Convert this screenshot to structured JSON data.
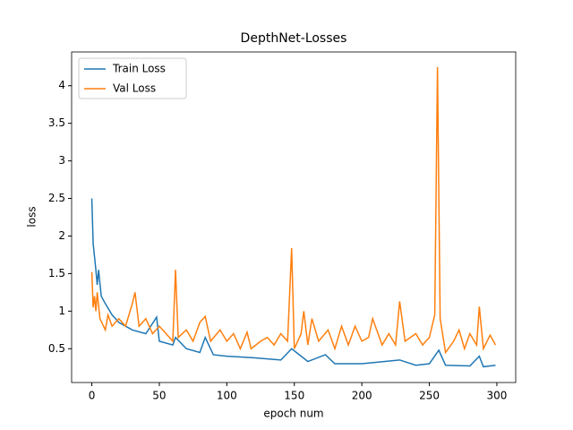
{
  "chart_data": {
    "type": "line",
    "title": "DepthNet-Losses",
    "x_label": "epoch num",
    "y_label": "loss",
    "xlim": [
      -14.95,
      313.95
    ],
    "xticks": [
      0,
      50,
      100,
      150,
      200,
      250,
      300
    ],
    "ylim": [
      0.05,
      4.45
    ],
    "yticks": [
      0.5,
      1.0,
      1.5,
      2.0,
      2.5,
      3.0,
      3.5,
      4.0
    ],
    "legend": "upper left",
    "series": [
      {
        "name": "Train Loss",
        "color": "#1f77b4",
        "x": [
          0,
          1,
          3,
          4,
          5,
          7,
          10,
          15,
          20,
          30,
          40,
          48,
          50,
          60,
          62,
          70,
          80,
          84,
          90,
          100,
          120,
          140,
          148,
          160,
          173,
          180,
          200,
          228,
          240,
          250,
          257,
          262,
          280,
          287,
          290,
          299
        ],
        "values": [
          2.5,
          1.9,
          1.55,
          1.35,
          1.55,
          1.2,
          1.1,
          0.95,
          0.85,
          0.75,
          0.7,
          0.92,
          0.6,
          0.55,
          0.65,
          0.5,
          0.45,
          0.65,
          0.42,
          0.4,
          0.38,
          0.35,
          0.5,
          0.33,
          0.42,
          0.3,
          0.3,
          0.35,
          0.28,
          0.3,
          0.48,
          0.28,
          0.27,
          0.4,
          0.26,
          0.28
        ]
      },
      {
        "name": "Val Loss",
        "color": "#ff7f0e",
        "x": [
          0,
          1,
          2,
          3,
          4,
          6,
          10,
          12,
          15,
          20,
          25,
          30,
          32,
          35,
          40,
          45,
          50,
          55,
          60,
          62,
          64,
          70,
          75,
          80,
          84,
          88,
          95,
          100,
          105,
          110,
          115,
          118,
          125,
          130,
          135,
          140,
          145,
          148,
          150,
          155,
          157,
          160,
          163,
          168,
          175,
          180,
          185,
          190,
          195,
          200,
          205,
          208,
          215,
          220,
          225,
          228,
          232,
          240,
          245,
          250,
          254,
          256,
          258,
          262,
          268,
          272,
          276,
          280,
          285,
          287,
          290,
          295,
          299
        ],
        "values": [
          1.52,
          1.05,
          1.2,
          1.0,
          1.25,
          0.9,
          0.75,
          0.95,
          0.8,
          0.9,
          0.8,
          1.1,
          1.25,
          0.8,
          0.9,
          0.7,
          0.8,
          0.7,
          0.6,
          1.55,
          0.65,
          0.75,
          0.6,
          0.85,
          0.93,
          0.6,
          0.75,
          0.6,
          0.7,
          0.5,
          0.72,
          0.5,
          0.6,
          0.65,
          0.55,
          0.7,
          0.6,
          1.84,
          0.5,
          0.7,
          1.0,
          0.55,
          0.9,
          0.6,
          0.75,
          0.5,
          0.8,
          0.55,
          0.8,
          0.6,
          0.65,
          0.9,
          0.55,
          0.7,
          0.55,
          1.13,
          0.6,
          0.7,
          0.55,
          0.65,
          0.95,
          4.25,
          0.9,
          0.45,
          0.6,
          0.75,
          0.5,
          0.7,
          0.55,
          1.06,
          0.5,
          0.68,
          0.55
        ]
      }
    ]
  }
}
